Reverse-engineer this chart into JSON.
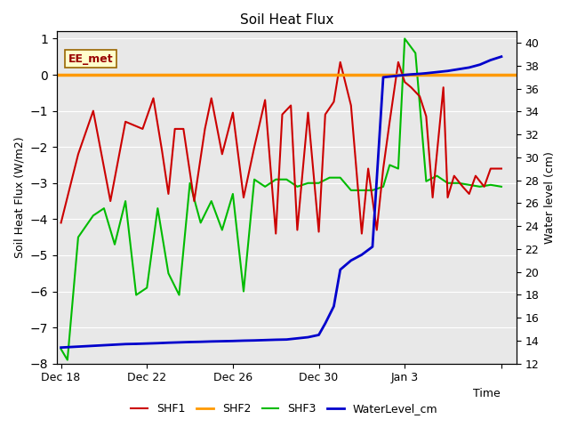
{
  "title": "Soil Heat Flux",
  "ylabel_left": "Soil Heat Flux (W/m2)",
  "ylabel_right": "Water level (cm)",
  "xlabel": "Time",
  "ylim_left": [
    -8.0,
    1.2
  ],
  "ylim_right": [
    12,
    41
  ],
  "yticks_left": [
    1.0,
    0.0,
    -1.0,
    -2.0,
    -3.0,
    -4.0,
    -5.0,
    -6.0,
    -7.0,
    -8.0
  ],
  "yticks_right": [
    40,
    38,
    36,
    34,
    32,
    30,
    28,
    26,
    24,
    22,
    20,
    18,
    16,
    14,
    12
  ],
  "fig_bg_color": "#ffffff",
  "plot_bg_color": "#e8e8e8",
  "annotation_text": "EE_met",
  "annotation_color": "#990000",
  "annotation_bg": "#ffffcc",
  "annotation_border": "#996600",
  "shf1_color": "#cc0000",
  "shf2_color": "#ff9900",
  "shf3_color": "#00bb00",
  "water_color": "#0000cc",
  "shf1_x": [
    0,
    0.8,
    1.5,
    2.3,
    3.0,
    3.8,
    4.3,
    4.7,
    5.0,
    5.3,
    5.7,
    6.2,
    6.7,
    7.0,
    7.5,
    8.0,
    8.5,
    9.0,
    9.5,
    10.0,
    10.3,
    10.7,
    11.0,
    11.5,
    12.0,
    12.3,
    12.7,
    13.0,
    13.5,
    14.0,
    14.3,
    14.7,
    15.0,
    15.3,
    15.7,
    16.0,
    16.3,
    16.7,
    17.0,
    17.3,
    17.8,
    18.0,
    18.3,
    18.7,
    19.0,
    19.3,
    19.7,
    20.0,
    20.5
  ],
  "shf1_y": [
    -4.1,
    -2.2,
    -1.0,
    -3.5,
    -1.3,
    -1.5,
    -0.65,
    -2.1,
    -3.3,
    -1.5,
    -1.5,
    -3.5,
    -1.5,
    -0.65,
    -2.2,
    -1.05,
    -3.4,
    -2.0,
    -0.7,
    -4.4,
    -1.1,
    -0.85,
    -4.3,
    -1.05,
    -4.35,
    -1.1,
    -0.75,
    0.35,
    -0.85,
    -4.4,
    -2.6,
    -4.3,
    -2.6,
    -1.3,
    0.35,
    -0.2,
    -0.35,
    -0.6,
    -1.15,
    -3.4,
    -0.35,
    -3.4,
    -2.8,
    -3.1,
    -3.3,
    -2.8,
    -3.1,
    -2.6,
    -2.6
  ],
  "shf3_x": [
    0,
    0.3,
    0.8,
    1.5,
    2.0,
    2.5,
    3.0,
    3.5,
    4.0,
    4.5,
    5.0,
    5.5,
    6.0,
    6.5,
    7.0,
    7.5,
    8.0,
    8.5,
    9.0,
    9.5,
    10.0,
    10.5,
    11.0,
    11.5,
    12.0,
    12.5,
    13.0,
    13.5,
    14.0,
    14.5,
    15.0,
    15.3,
    15.7,
    16.0,
    16.5,
    17.0,
    17.5,
    18.0,
    18.5,
    19.0,
    19.5,
    20.0,
    20.5
  ],
  "shf3_y": [
    -7.6,
    -7.9,
    -4.5,
    -3.9,
    -3.7,
    -4.7,
    -3.5,
    -6.1,
    -5.9,
    -3.7,
    -5.5,
    -6.1,
    -3.0,
    -4.1,
    -3.5,
    -4.3,
    -3.3,
    -6.0,
    -2.9,
    -3.1,
    -2.9,
    -2.9,
    -3.1,
    -3.0,
    -3.0,
    -2.85,
    -2.85,
    -3.2,
    -3.2,
    -3.2,
    -3.1,
    -2.5,
    -2.6,
    1.0,
    0.6,
    -2.95,
    -2.8,
    -3.0,
    -3.0,
    -3.05,
    -3.1,
    -3.05,
    -3.1
  ],
  "water_x": [
    0,
    0.5,
    1.0,
    1.5,
    2.0,
    2.5,
    3.0,
    3.5,
    4.0,
    4.5,
    5.0,
    5.5,
    6.0,
    6.5,
    7.0,
    7.5,
    8.0,
    8.5,
    9.0,
    9.5,
    10.0,
    10.5,
    11.0,
    11.5,
    12.0,
    12.3,
    12.7,
    13.0,
    13.5,
    14.0,
    14.5,
    15.0,
    15.5,
    16.0,
    16.3,
    16.7,
    17.0,
    17.5,
    18.0,
    18.5,
    19.0,
    19.5,
    20.0,
    20.5
  ],
  "water_y_cm": [
    13.4,
    13.45,
    13.5,
    13.55,
    13.6,
    13.65,
    13.7,
    13.72,
    13.75,
    13.78,
    13.82,
    13.85,
    13.88,
    13.9,
    13.93,
    13.95,
    13.97,
    14.0,
    14.02,
    14.05,
    14.08,
    14.1,
    14.2,
    14.3,
    14.5,
    15.5,
    17.0,
    20.2,
    21.0,
    21.5,
    22.2,
    37.0,
    37.1,
    37.2,
    37.25,
    37.3,
    37.35,
    37.45,
    37.55,
    37.7,
    37.85,
    38.1,
    38.5,
    38.8
  ],
  "xlim": [
    -0.2,
    21.2
  ],
  "xtick_pos": [
    0,
    4,
    8,
    12,
    16,
    20.5
  ],
  "xtick_labels": [
    "Dec 18",
    "Dec 22",
    "Dec 26",
    "Dec 30",
    "Jan 3",
    ""
  ]
}
